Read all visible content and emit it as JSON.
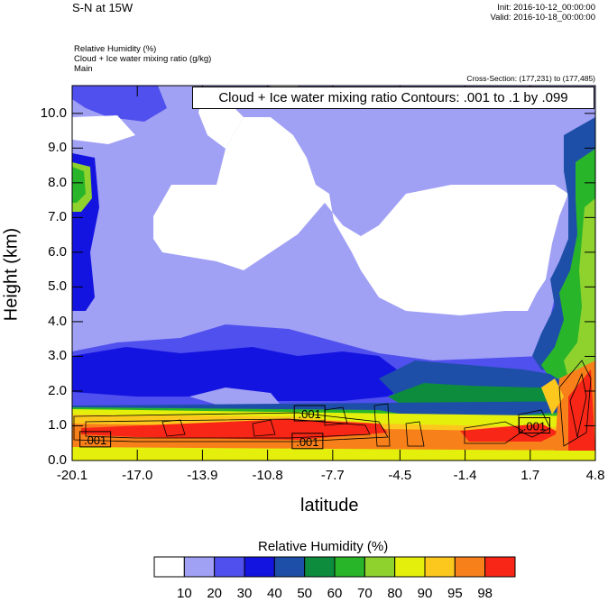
{
  "header": {
    "title": "S-N at 15W",
    "init": "Init: 2016-10-12_00:00:00",
    "valid": "Valid: 2016-10-18_00:00:00",
    "fields": [
      "Relative Humidity   (%)",
      "Cloud + Ice water mixing ratio   (g/kg)",
      "Main"
    ],
    "cross_section": "Cross-Section: (177,231) to (177,485)"
  },
  "contour_info": "Cloud + Ice water mixing ratio Contours: .001 to .1 by .099",
  "colors": {
    "levels": [
      "#ffffff",
      "#a0a0f5",
      "#5050ee",
      "#1414e0",
      "#1e4fa8",
      "#0c8c3c",
      "#29b52a",
      "#8fd22e",
      "#e4f00c",
      "#fcc81e",
      "#f8801a",
      "#f82616"
    ]
  },
  "chart_data": {
    "type": "heatmap",
    "xlabel": "latitude",
    "ylabel": "Height (km)",
    "xlim": [
      -20.1,
      4.8
    ],
    "ylim": [
      0.0,
      10.8
    ],
    "x_ticks": [
      "-20.1",
      "-17.0",
      "-13.9",
      "-10.8",
      "-7.7",
      "-4.5",
      "-1.4",
      "1.7",
      "4.8"
    ],
    "y_ticks": [
      "0.0",
      "1.0",
      "2.0",
      "3.0",
      "4.0",
      "5.0",
      "6.0",
      "7.0",
      "8.0",
      "9.0",
      "10.0"
    ],
    "colorbar": {
      "title": "Relative Humidity  (%)",
      "labels": [
        "10",
        "20",
        "30",
        "40",
        "50",
        "60",
        "70",
        "80",
        "90",
        "95",
        "98"
      ]
    },
    "contour_labels": [
      {
        "text": ".001",
        "lat": -19.0,
        "height": 0.6
      },
      {
        "text": ".001",
        "lat": -8.8,
        "height": 1.35
      },
      {
        "text": ".001",
        "lat": -8.9,
        "height": 0.55
      },
      {
        "text": ".001",
        "lat": 1.9,
        "height": 1.0
      }
    ]
  }
}
